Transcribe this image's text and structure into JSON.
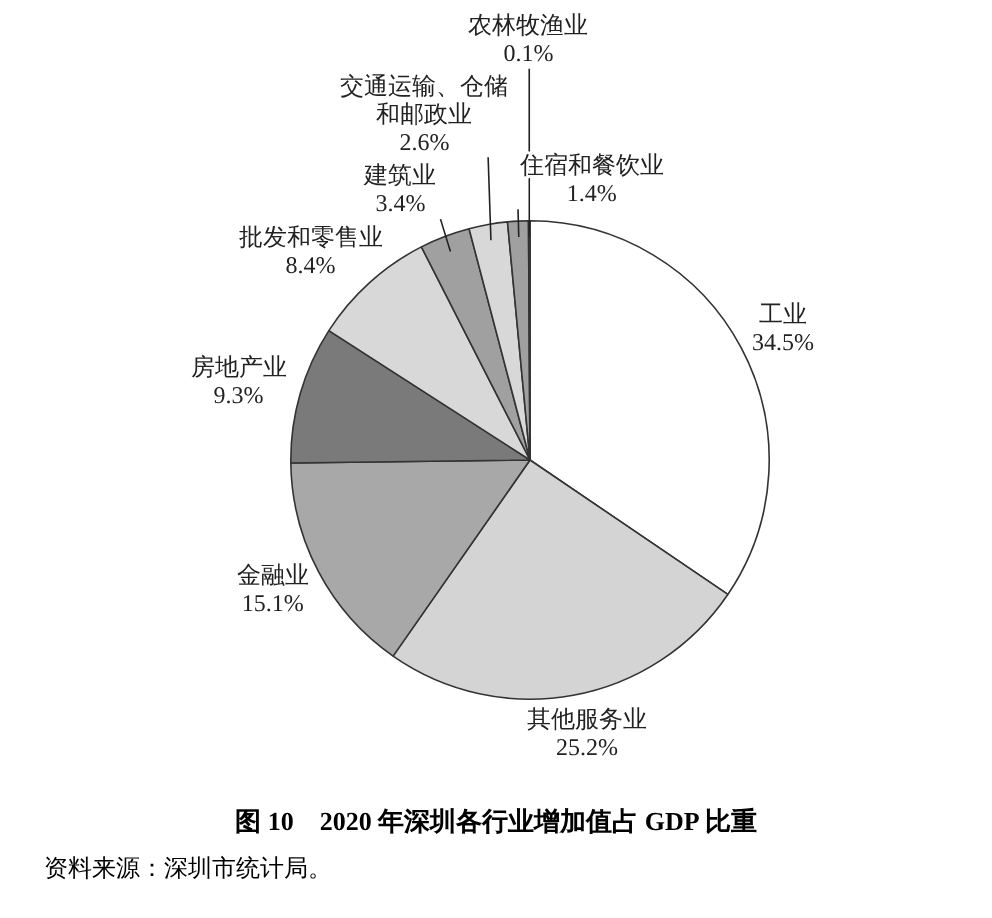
{
  "chart_data": {
    "type": "pie",
    "title": "图 10　2020 年深圳各行业增加值占 GDP 比重",
    "categories": [
      "工业",
      "其他服务业",
      "金融业",
      "房地产业",
      "批发和零售业",
      "建筑业",
      "交通运输、仓储和邮政业",
      "住宿和餐饮业",
      "农林牧渔业"
    ],
    "values": [
      34.5,
      25.2,
      15.1,
      9.3,
      8.4,
      3.4,
      2.6,
      1.4,
      0.1
    ],
    "value_labels": [
      "34.5%",
      "25.2%",
      "15.1%",
      "9.3%",
      "8.4%",
      "3.4%",
      "2.6%",
      "1.4%",
      "0.1%"
    ],
    "colors": [
      "#ffffff",
      "#d4d4d4",
      "#a8a8a8",
      "#7a7a7a",
      "#d8d8d8",
      "#a0a0a0",
      "#d8d8d8",
      "#a0a0a0",
      "#555555"
    ],
    "legend": false,
    "annotations": [
      "资料来源：深圳市统计局。"
    ]
  }
}
